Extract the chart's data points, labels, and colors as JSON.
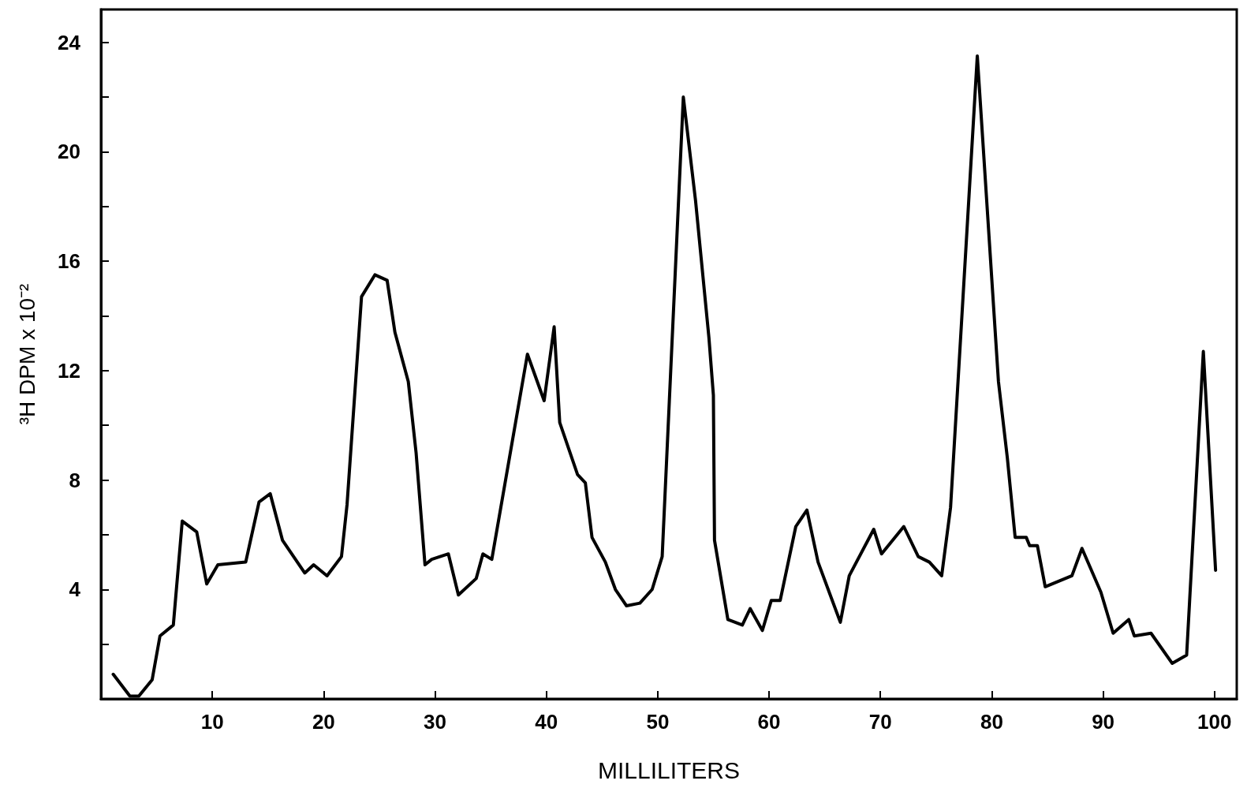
{
  "chart_data": {
    "type": "line",
    "xlabel": "MILLILITERS",
    "ylabel": "³H DPM x 10⁻²",
    "x": [
      1.1,
      2.6,
      3.4,
      4.6,
      5.3,
      6.5,
      7.3,
      8.6,
      9.5,
      10.5,
      13.0,
      14.2,
      15.2,
      16.3,
      18.3,
      19.1,
      20.3,
      21.6,
      22.1,
      23.4,
      24.6,
      25.7,
      26.4,
      27.6,
      28.3,
      29.1,
      29.7,
      31.2,
      32.1,
      33.7,
      34.3,
      35.1,
      38.3,
      39.8,
      40.7,
      41.2,
      42.8,
      43.5,
      44.1,
      45.3,
      46.2,
      47.2,
      48.4,
      49.5,
      50.4,
      52.3,
      53.4,
      54.6,
      55.0,
      55.1,
      56.3,
      57.6,
      58.3,
      59.4,
      60.2,
      61.0,
      62.4,
      63.4,
      64.4,
      66.4,
      67.2,
      69.4,
      70.1,
      72.1,
      73.4,
      74.4,
      75.5,
      76.3,
      78.7,
      80.6,
      81.4,
      82.1,
      83.1,
      83.4,
      84.1,
      84.8,
      87.2,
      88.1,
      89.8,
      90.9,
      92.3,
      92.8,
      94.3,
      96.2,
      97.5,
      99.0,
      100.1
    ],
    "series": [
      {
        "color": "#000000",
        "values": [
          0.9,
          0.1,
          0.1,
          0.7,
          2.3,
          2.7,
          6.5,
          6.1,
          4.2,
          4.9,
          5.0,
          7.2,
          7.5,
          5.8,
          4.6,
          4.9,
          4.5,
          5.2,
          7.1,
          14.7,
          15.5,
          15.3,
          13.4,
          11.6,
          9.0,
          4.9,
          5.1,
          5.3,
          3.8,
          4.4,
          5.3,
          5.1,
          12.6,
          10.9,
          13.6,
          10.1,
          8.2,
          7.9,
          5.9,
          5.0,
          4.0,
          3.4,
          3.5,
          4.0,
          5.2,
          22.0,
          18.2,
          13.2,
          11.1,
          5.8,
          2.9,
          2.7,
          3.3,
          2.5,
          3.6,
          3.6,
          6.3,
          6.9,
          5.0,
          2.8,
          4.5,
          6.2,
          5.3,
          6.3,
          5.2,
          5.0,
          4.5,
          7.0,
          23.5,
          11.6,
          8.8,
          5.9,
          5.9,
          5.6,
          5.6,
          4.1,
          4.5,
          5.5,
          3.9,
          2.4,
          2.9,
          2.3,
          2.4,
          1.3,
          1.6,
          12.7,
          4.7
        ]
      }
    ],
    "xlim": [
      0,
      102
    ],
    "xticks": [
      10,
      20,
      30,
      40,
      50,
      60,
      70,
      80,
      90,
      100
    ],
    "ylim": [
      0,
      25.2
    ],
    "yticks": [
      {
        "value": 0,
        "label": null
      },
      {
        "value": 2,
        "label": null
      },
      4,
      {
        "value": 6,
        "label": null
      },
      8,
      {
        "value": 10,
        "label": null
      },
      12,
      {
        "value": 14,
        "label": null
      },
      16,
      {
        "value": 18,
        "label": null
      },
      20,
      {
        "value": 22,
        "label": null
      },
      24
    ],
    "grid": false,
    "marker": "none",
    "line_style": "solid"
  }
}
